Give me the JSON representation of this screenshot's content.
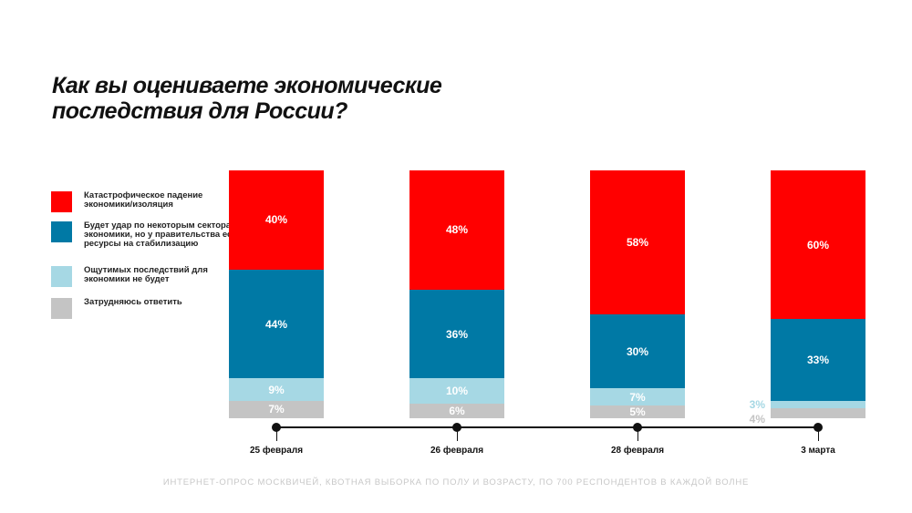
{
  "chart_data": {
    "type": "bar",
    "stacked": true,
    "title": "Как вы оцениваете экономические последствия для России?",
    "categories": [
      "25 февраля",
      "26 февраля",
      "28 февраля",
      "3 марта"
    ],
    "series": [
      {
        "name": "Катастрофическое падение экономики/изоляция",
        "color": "#ff0000",
        "values": [
          40,
          48,
          58,
          60
        ]
      },
      {
        "name": "Будет удар по некоторым секторам экономики, но у правительства есть ресурсы на стабилизацию",
        "color": "#0079a5",
        "values": [
          44,
          36,
          30,
          33
        ]
      },
      {
        "name": "Ощутимых последствий для экономики не будет",
        "color": "#a6d8e4",
        "values": [
          9,
          10,
          7,
          3
        ]
      },
      {
        "name": "Затрудняюсь ответить",
        "color": "#c4c4c4",
        "values": [
          7,
          6,
          5,
          4
        ]
      }
    ],
    "unit": "%",
    "ylim": [
      0,
      100
    ],
    "legend_position": "left",
    "footnote": "ИНТЕРНЕТ-ОПРОС МОСКВИЧЕЙ, КВОТНАЯ ВЫБОРКА ПО ПОЛУ И ВОЗРАСТУ, ПО 700 РЕСПОНДЕНТОВ В КАЖДОЙ ВОЛНЕ"
  }
}
